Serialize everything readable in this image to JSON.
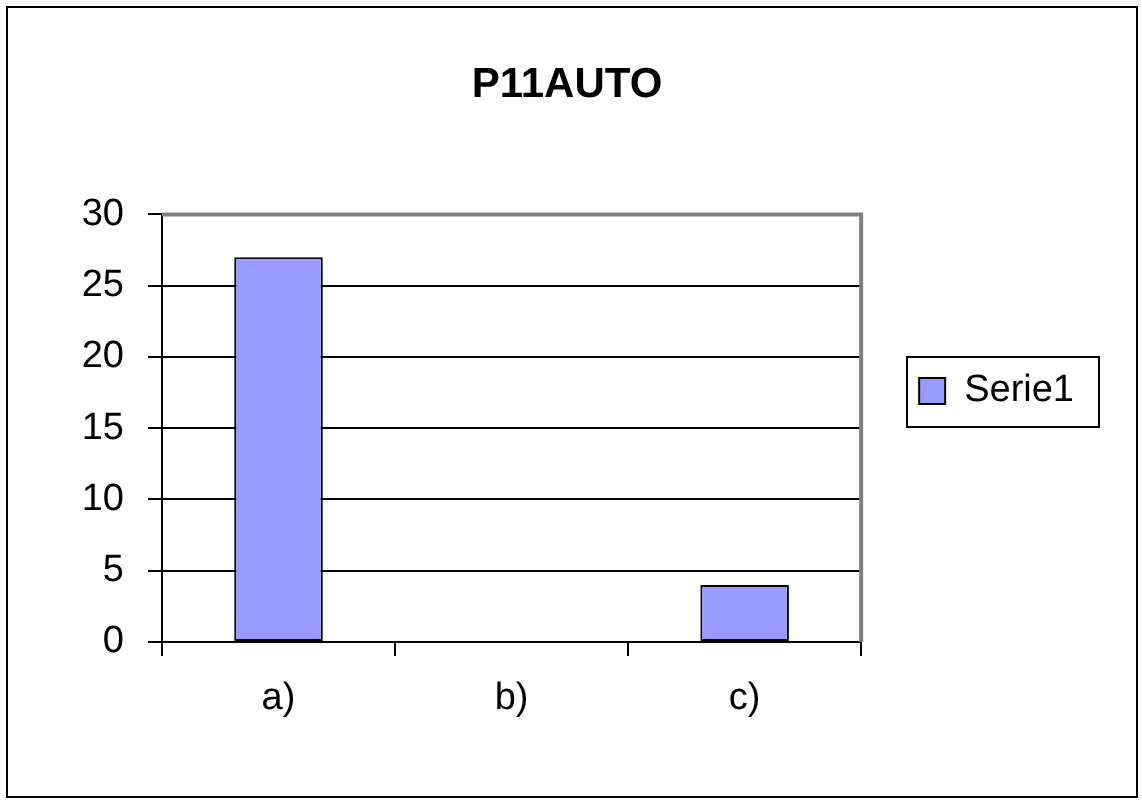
{
  "chart_data": {
    "type": "bar",
    "title": "P11AUTO",
    "categories": [
      "a)",
      "b)",
      "c)"
    ],
    "series": [
      {
        "name": "Serie1",
        "color": "#9999ff",
        "values": [
          27,
          0,
          4
        ]
      }
    ],
    "ylim": [
      0,
      30
    ],
    "yticks": [
      0,
      5,
      10,
      15,
      20,
      25,
      30
    ],
    "grid": "y",
    "legend": "right"
  }
}
